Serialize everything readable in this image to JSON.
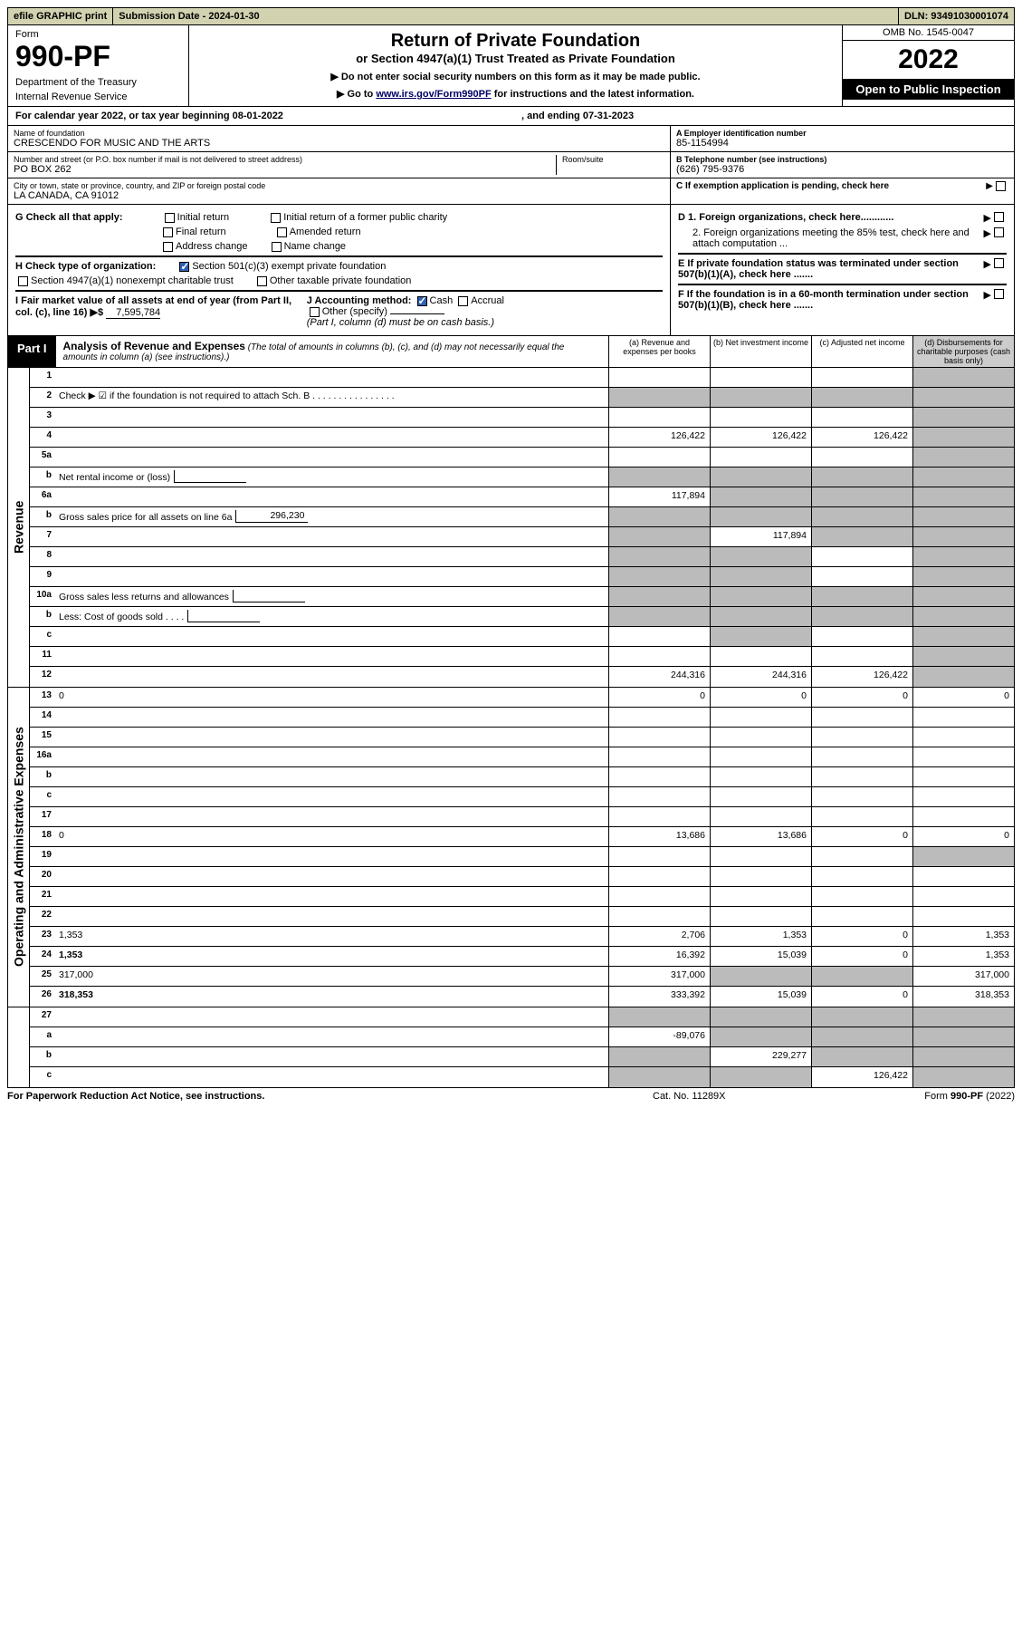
{
  "topbar": {
    "efile": "efile GRAPHIC print",
    "subdate_label": "Submission Date - ",
    "subdate": "2024-01-30",
    "dln_label": "DLN: ",
    "dln": "93491030001074"
  },
  "formhdr": {
    "form_label": "Form",
    "form_no": "990-PF",
    "dept": "Department of the Treasury",
    "irs": "Internal Revenue Service",
    "title1": "Return of Private Foundation",
    "title2": "or Section 4947(a)(1) Trust Treated as Private Foundation",
    "instr1": "▶ Do not enter social security numbers on this form as it may be made public.",
    "instr2_pre": "▶ Go to ",
    "instr2_link": "www.irs.gov/Form990PF",
    "instr2_post": " for instructions and the latest information.",
    "omb": "OMB No. 1545-0047",
    "year": "2022",
    "open": "Open to Public Inspection"
  },
  "calyear": {
    "prefix": "For calendar year 2022, or tax year beginning ",
    "begin": "08-01-2022",
    "end_prefix": ", and ending ",
    "end": "07-31-2023"
  },
  "entity": {
    "name_label": "Name of foundation",
    "name": "CRESCENDO FOR MUSIC AND THE ARTS",
    "addr_label": "Number and street (or P.O. box number if mail is not delivered to street address)",
    "addr": "PO BOX 262",
    "room_label": "Room/suite",
    "city_label": "City or town, state or province, country, and ZIP or foreign postal code",
    "city": "LA CANADA, CA  91012",
    "a_label": "A Employer identification number",
    "a_val": "85-1154994",
    "b_label": "B Telephone number (see instructions)",
    "b_val": "(626) 795-9376",
    "c_label": "C If exemption application is pending, check here"
  },
  "checks": {
    "g_label": "G Check all that apply:",
    "g_opts": [
      "Initial return",
      "Initial return of a former public charity",
      "Final return",
      "Amended return",
      "Address change",
      "Name change"
    ],
    "h_label": "H Check type of organization:",
    "h_501c3": "Section 501(c)(3) exempt private foundation",
    "h_4947": "Section 4947(a)(1) nonexempt charitable trust",
    "h_other": "Other taxable private foundation",
    "i_label": "I Fair market value of all assets at end of year (from Part II, col. (c), line 16) ▶$",
    "i_val": "7,595,784",
    "j_label": "J Accounting method:",
    "j_cash": "Cash",
    "j_accrual": "Accrual",
    "j_other": "Other (specify)",
    "j_note": "(Part I, column (d) must be on cash basis.)",
    "d1": "D 1. Foreign organizations, check here............",
    "d2": "2. Foreign organizations meeting the 85% test, check here and attach computation ...",
    "e": "E  If private foundation status was terminated under section 507(b)(1)(A), check here .......",
    "f": "F  If the foundation is in a 60-month termination under section 507(b)(1)(B), check here .......",
    "arrow": "▶"
  },
  "part1": {
    "label": "Part I",
    "title": "Analysis of Revenue and Expenses",
    "subtitle": "(The total of amounts in columns (b), (c), and (d) may not necessarily equal the amounts in column (a) (see instructions).)",
    "cols": [
      "(a)  Revenue and expenses per books",
      "(b)  Net investment income",
      "(c)  Adjusted net income",
      "(d)  Disbursements for charitable purposes (cash basis only)"
    ]
  },
  "sections": {
    "revenue": "Revenue",
    "expenses": "Operating and Administrative Expenses"
  },
  "rows": [
    {
      "n": "1",
      "d": "",
      "a": "",
      "b": "",
      "c": "",
      "d_gray": true
    },
    {
      "n": "2",
      "d": "Check ▶ ☑ if the foundation is not required to attach Sch. B  .  .  .  .  .  .  .  .  .  .  .  .  .  .  .  .",
      "nocells": true
    },
    {
      "n": "3",
      "d": "",
      "a": "",
      "b": "",
      "c": "",
      "d_gray": true
    },
    {
      "n": "4",
      "d": "",
      "a": "126,422",
      "b": "126,422",
      "c": "126,422",
      "d_gray": true
    },
    {
      "n": "5a",
      "d": "",
      "a": "",
      "b": "",
      "c": "",
      "d_gray": true
    },
    {
      "n": "b",
      "d": "Net rental income or (loss)",
      "inline": "",
      "nocells_partial": true
    },
    {
      "n": "6a",
      "d": "",
      "a": "117,894",
      "b": "",
      "c": "",
      "b_gray": true,
      "c_gray": true,
      "d_gray": true
    },
    {
      "n": "b",
      "d": "Gross sales price for all assets on line 6a",
      "inline": "296,230",
      "nocells_partial": true
    },
    {
      "n": "7",
      "d": "",
      "a": "",
      "b": "117,894",
      "c": "",
      "a_gray": true,
      "c_gray": true,
      "d_gray": true
    },
    {
      "n": "8",
      "d": "",
      "a": "",
      "b": "",
      "c": "",
      "a_gray": true,
      "b_gray": true,
      "d_gray": true
    },
    {
      "n": "9",
      "d": "",
      "a": "",
      "b": "",
      "c": "",
      "a_gray": true,
      "b_gray": true,
      "d_gray": true
    },
    {
      "n": "10a",
      "d": "Gross sales less returns and allowances",
      "inline": "",
      "nocells_partial": true
    },
    {
      "n": "b",
      "d": "Less: Cost of goods sold   .   .   .   .",
      "inline": "",
      "nocells_partial": true,
      "smallbox": true
    },
    {
      "n": "c",
      "d": "",
      "a": "",
      "b": "",
      "c": "",
      "b_gray": true,
      "d_gray": true
    },
    {
      "n": "11",
      "d": "",
      "a": "",
      "b": "",
      "c": "",
      "d_gray": true
    },
    {
      "n": "12",
      "d": "",
      "bold": true,
      "a": "244,316",
      "b": "244,316",
      "c": "126,422",
      "d_gray": true
    }
  ],
  "exprows": [
    {
      "n": "13",
      "d": "0",
      "a": "0",
      "b": "0",
      "c": "0"
    },
    {
      "n": "14",
      "d": "",
      "a": "",
      "b": "",
      "c": ""
    },
    {
      "n": "15",
      "d": "",
      "a": "",
      "b": "",
      "c": ""
    },
    {
      "n": "16a",
      "d": "",
      "a": "",
      "b": "",
      "c": ""
    },
    {
      "n": "b",
      "d": "",
      "a": "",
      "b": "",
      "c": ""
    },
    {
      "n": "c",
      "d": "",
      "a": "",
      "b": "",
      "c": ""
    },
    {
      "n": "17",
      "d": "",
      "a": "",
      "b": "",
      "c": ""
    },
    {
      "n": "18",
      "d": "0",
      "a": "13,686",
      "b": "13,686",
      "c": "0"
    },
    {
      "n": "19",
      "d": "",
      "a": "",
      "b": "",
      "c": "",
      "d_gray": true
    },
    {
      "n": "20",
      "d": "",
      "a": "",
      "b": "",
      "c": ""
    },
    {
      "n": "21",
      "d": "",
      "a": "",
      "b": "",
      "c": ""
    },
    {
      "n": "22",
      "d": "",
      "a": "",
      "b": "",
      "c": ""
    },
    {
      "n": "23",
      "d": "1,353",
      "a": "2,706",
      "b": "1,353",
      "c": "0"
    },
    {
      "n": "24",
      "d": "1,353",
      "bold": true,
      "a": "16,392",
      "b": "15,039",
      "c": "0"
    },
    {
      "n": "25",
      "d": "317,000",
      "a": "317,000",
      "b": "",
      "c": "",
      "b_gray": true,
      "c_gray": true
    },
    {
      "n": "26",
      "d": "318,353",
      "bold": true,
      "a": "333,392",
      "b": "15,039",
      "c": "0"
    }
  ],
  "netrows": [
    {
      "n": "27",
      "d": "",
      "a": "",
      "b": "",
      "c": "",
      "a_gray": true,
      "b_gray": true,
      "c_gray": true,
      "d_gray": true
    },
    {
      "n": "a",
      "d": "",
      "bold": true,
      "a": "-89,076",
      "b": "",
      "c": "",
      "b_gray": true,
      "c_gray": true,
      "d_gray": true
    },
    {
      "n": "b",
      "d": "",
      "bold": true,
      "a": "",
      "b": "229,277",
      "c": "",
      "a_gray": true,
      "c_gray": true,
      "d_gray": true
    },
    {
      "n": "c",
      "d": "",
      "bold": true,
      "a": "",
      "b": "",
      "c": "126,422",
      "a_gray": true,
      "b_gray": true,
      "d_gray": true
    }
  ],
  "footer": {
    "left": "For Paperwork Reduction Act Notice, see instructions.",
    "mid": "Cat. No. 11289X",
    "right": "Form 990-PF (2022)"
  }
}
